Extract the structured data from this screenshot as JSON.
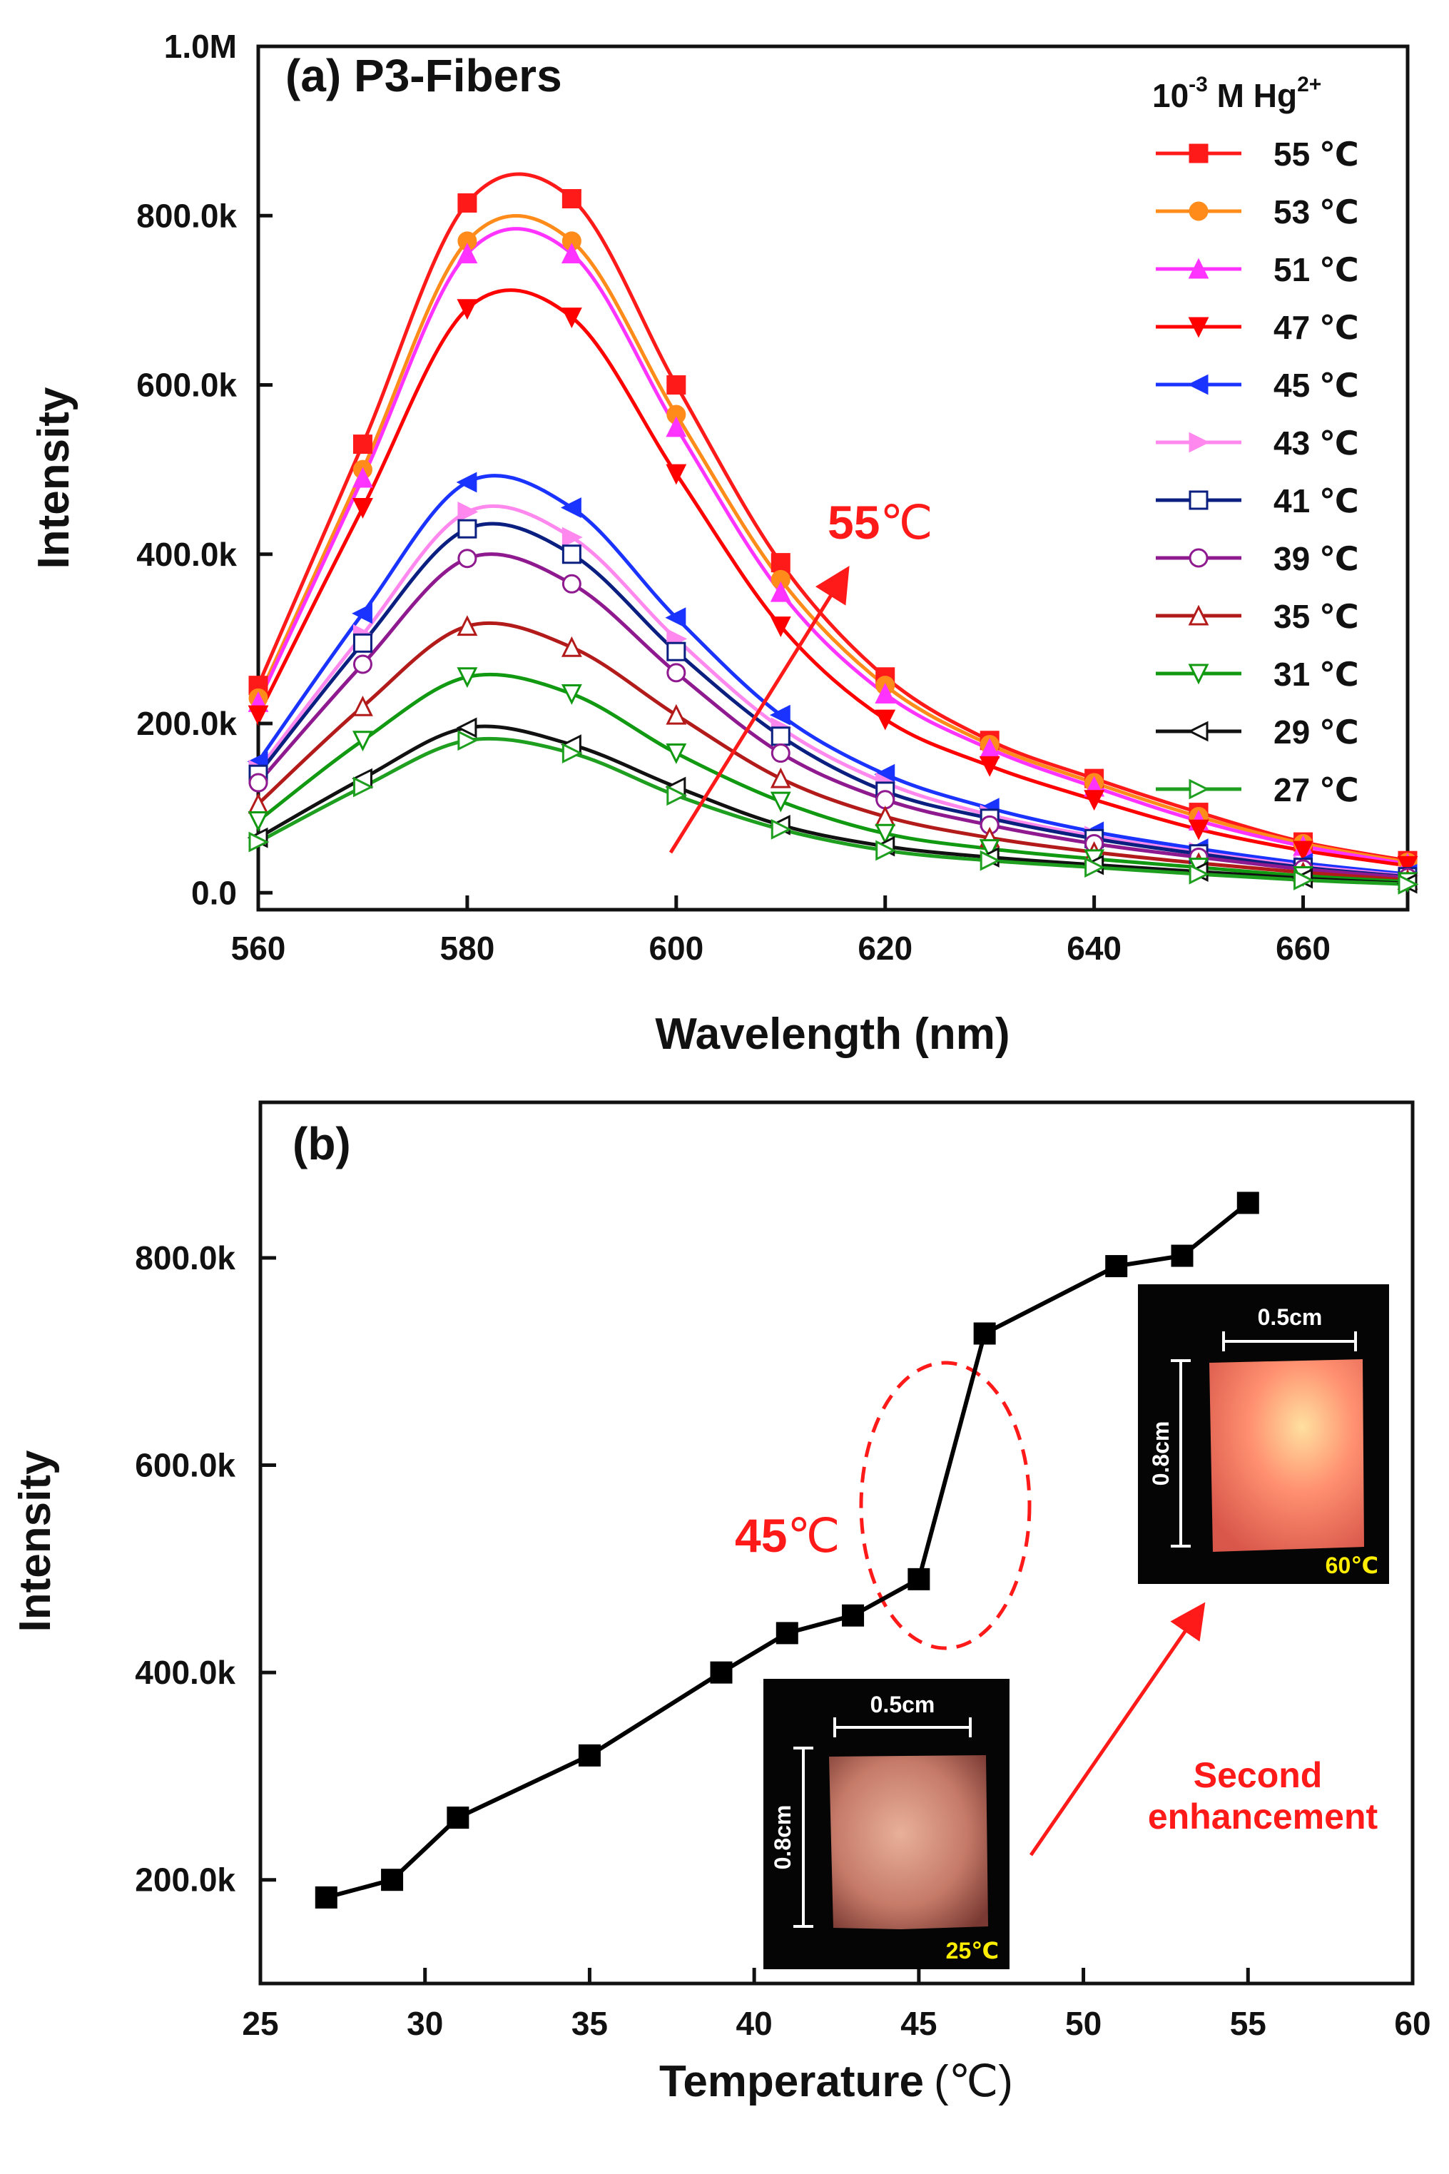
{
  "chart_data": [
    {
      "type": "line",
      "title": "(a) P3-Fibers",
      "xlabel": "Wavelength (nm)",
      "ylabel": "Intensity",
      "xlim": [
        560,
        670
      ],
      "ylim": [
        -20000,
        1000000
      ],
      "x_ticks": [
        560,
        580,
        600,
        620,
        640,
        660
      ],
      "x_tick_labels": [
        "560",
        "580",
        "600",
        "620",
        "640",
        "660"
      ],
      "y_ticks": [
        0,
        200000,
        400000,
        600000,
        800000,
        1000000
      ],
      "y_tick_labels": [
        "0.0",
        "200.0k",
        "400.0k",
        "600.0k",
        "800.0k",
        "1.0M"
      ],
      "legend_title_base": "10",
      "legend_title_exp": "-3",
      "legend_title_mid": " M Hg",
      "legend_title_ion": "2+",
      "annotation": {
        "value": "55",
        "unit": "℃"
      },
      "x": [
        560,
        570,
        580,
        590,
        600,
        610,
        620,
        630,
        640,
        650,
        660,
        670
      ],
      "series": [
        {
          "name": "55 ℃",
          "color": "#ff1a1a",
          "marker": "square-filled",
          "values": [
            245000,
            530000,
            815000,
            820000,
            600000,
            390000,
            255000,
            180000,
            135000,
            95000,
            60000,
            38000
          ]
        },
        {
          "name": "53 ℃",
          "color": "#ff8c1a",
          "marker": "circle-filled",
          "values": [
            230000,
            500000,
            770000,
            770000,
            565000,
            370000,
            245000,
            175000,
            130000,
            90000,
            58000,
            36000
          ]
        },
        {
          "name": "51 ℃",
          "color": "#ff33ff",
          "marker": "triangle-up",
          "values": [
            225000,
            490000,
            755000,
            755000,
            550000,
            355000,
            235000,
            170000,
            125000,
            85000,
            55000,
            34000
          ]
        },
        {
          "name": "47 ℃",
          "color": "#ff0000",
          "marker": "triangle-down",
          "values": [
            210000,
            455000,
            690000,
            680000,
            495000,
            315000,
            205000,
            150000,
            110000,
            75000,
            50000,
            32000
          ]
        },
        {
          "name": "45 ℃",
          "color": "#1a33ff",
          "marker": "triangle-left",
          "values": [
            155000,
            330000,
            485000,
            455000,
            325000,
            210000,
            140000,
            100000,
            72000,
            52000,
            35000,
            22000
          ]
        },
        {
          "name": "43 ℃",
          "color": "#ff88ee",
          "marker": "triangle-right",
          "values": [
            145000,
            305000,
            450000,
            420000,
            300000,
            195000,
            130000,
            92000,
            67000,
            48000,
            32000,
            20000
          ]
        },
        {
          "name": "41 ℃",
          "color": "#0a1f80",
          "marker": "square-open",
          "values": [
            140000,
            295000,
            430000,
            400000,
            285000,
            185000,
            120000,
            88000,
            64000,
            46000,
            30000,
            19000
          ]
        },
        {
          "name": "39 ℃",
          "color": "#8f1a8f",
          "marker": "circle-open",
          "values": [
            130000,
            270000,
            395000,
            365000,
            260000,
            165000,
            110000,
            80000,
            58000,
            42000,
            28000,
            18000
          ]
        },
        {
          "name": "35 ℃",
          "color": "#b31a1a",
          "marker": "triangle-up-open",
          "values": [
            105000,
            220000,
            315000,
            290000,
            210000,
            135000,
            90000,
            65000,
            48000,
            35000,
            24000,
            15000
          ]
        },
        {
          "name": "31 ℃",
          "color": "#119911",
          "marker": "triangle-down-open",
          "values": [
            85000,
            180000,
            255000,
            235000,
            165000,
            108000,
            70000,
            52000,
            40000,
            30000,
            20000,
            13000
          ]
        },
        {
          "name": "29 ℃",
          "color": "#111111",
          "marker": "triangle-left-open",
          "values": [
            65000,
            135000,
            195000,
            175000,
            125000,
            80000,
            55000,
            42000,
            33000,
            25000,
            17000,
            11000
          ]
        },
        {
          "name": "27 ℃",
          "color": "#1f9f1f",
          "marker": "triangle-right-open",
          "values": [
            60000,
            125000,
            180000,
            165000,
            115000,
            75000,
            50000,
            38000,
            30000,
            22000,
            15000,
            10000
          ]
        }
      ]
    },
    {
      "type": "line",
      "title": "(b)",
      "xlabel": "Temperature",
      "xlabel_unit": "(℃)",
      "ylabel": "Intensity",
      "xlim": [
        25,
        60
      ],
      "ylim": [
        100000,
        950000
      ],
      "x_ticks": [
        25,
        30,
        35,
        40,
        45,
        50,
        55,
        60
      ],
      "x_tick_labels": [
        "25",
        "30",
        "35",
        "40",
        "45",
        "50",
        "55",
        "60"
      ],
      "y_ticks": [
        200000,
        400000,
        600000,
        800000
      ],
      "y_tick_labels": [
        "200.0k",
        "400.0k",
        "600.0k",
        "800.0k"
      ],
      "series": [
        {
          "name": "Intensity",
          "color": "#000000",
          "marker": "square-filled",
          "x": [
            27,
            29,
            31,
            35,
            39,
            41,
            43,
            45,
            47,
            51,
            53,
            55
          ],
          "values": [
            183000,
            200000,
            260000,
            320000,
            400000,
            438000,
            455000,
            490000,
            727000,
            792000,
            802000,
            853000
          ]
        }
      ],
      "annotations": {
        "transition": {
          "value": "45",
          "unit": "℃"
        },
        "arrow_text": [
          "Second",
          "enhancement"
        ],
        "inset_low": {
          "width_label": "0.5cm",
          "height_label": "0.8cm",
          "temp_label": "25℃"
        },
        "inset_high": {
          "width_label": "0.5cm",
          "height_label": "0.8cm",
          "temp_label": "60℃"
        }
      }
    }
  ]
}
